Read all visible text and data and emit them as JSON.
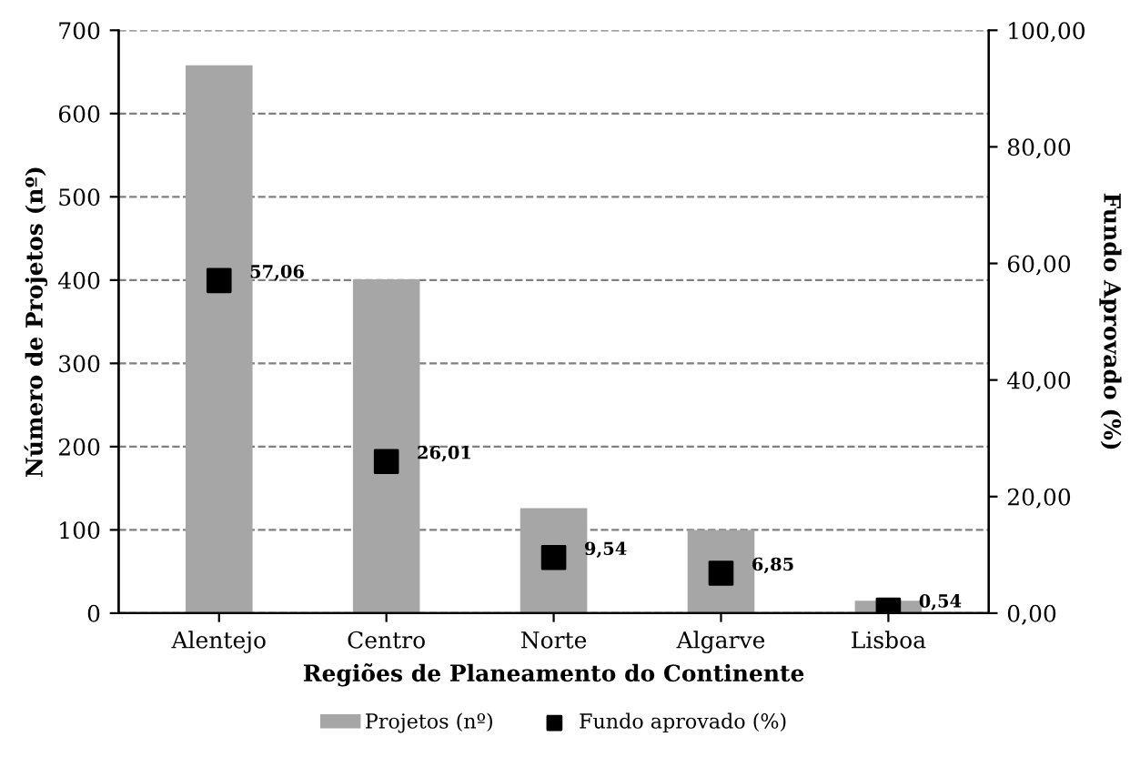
{
  "chart_data": {
    "type": "bar",
    "xlabel": "Regiões de Planeamento do Continente",
    "ylabel": "Número de Projetos (nº)",
    "y2label": "Fundo Aprovado (%)",
    "categories": [
      "Alentejo",
      "Centro",
      "Norte",
      "Algarve",
      "Lisboa"
    ],
    "series": [
      {
        "name": "Projetos (nº)",
        "color": "#a6a6a6",
        "values": [
          658,
          401,
          126,
          100,
          15
        ]
      },
      {
        "name": "Fundo aprovado (%)",
        "type": "scatter",
        "axis": "y2",
        "color": "#000000",
        "values": [
          57.06,
          26.01,
          9.54,
          6.85,
          0.54
        ],
        "value_labels": [
          "57,06",
          "26,01",
          "9,54",
          "6,85",
          "0,54"
        ]
      }
    ],
    "ylim": [
      0,
      700
    ],
    "yticks": [
      0,
      100,
      200,
      300,
      400,
      500,
      600,
      700
    ],
    "y2lim": [
      0,
      100
    ],
    "y2ticks": [
      {
        "value": 0,
        "label": "0,00"
      },
      {
        "value": 20,
        "label": "20,00"
      },
      {
        "value": 40,
        "label": "40,00"
      },
      {
        "value": 60,
        "label": "60,00"
      },
      {
        "value": 80,
        "label": "80,00"
      },
      {
        "value": 100,
        "label": "100,00"
      }
    ],
    "grid": "y",
    "legend": "bottom",
    "marker": "square"
  }
}
